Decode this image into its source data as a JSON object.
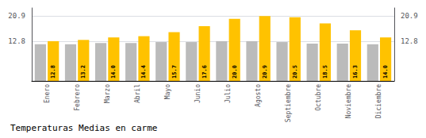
{
  "chart_data": {
    "type": "bar",
    "title": "Temperaturas Medias en carme",
    "categories": [
      "Enero",
      "Febrero",
      "Marzo",
      "Abril",
      "Mayo",
      "Junio",
      "Julio",
      "Agosto",
      "Septiembre",
      "Octubre",
      "Noviembre",
      "Diciembre"
    ],
    "series": [
      {
        "color": "#BBBBBB",
        "values": [
          11.8,
          11.8,
          12.2,
          12.2,
          12.5,
          12.5,
          12.8,
          12.8,
          12.5,
          12.0,
          12.0,
          11.8
        ]
      },
      {
        "color": "#FFC200",
        "values": [
          12.8,
          13.2,
          14.0,
          14.4,
          15.7,
          17.6,
          20.0,
          20.9,
          20.5,
          18.5,
          16.3,
          14.0
        ],
        "data_labels": true,
        "value_labels": [
          "12.8",
          "13.2",
          "14.0",
          "14.4",
          "15.7",
          "17.6",
          "20.0",
          "20.9",
          "20.5",
          "18.5",
          "16.3",
          "14.0"
        ]
      }
    ],
    "ylim": [
      0.0,
      23.5
    ],
    "yticks": [
      12.8,
      20.9
    ],
    "y2lim": [
      0.0,
      23.5
    ],
    "y2ticks": [
      12.8,
      20.9
    ],
    "grid": true
  }
}
